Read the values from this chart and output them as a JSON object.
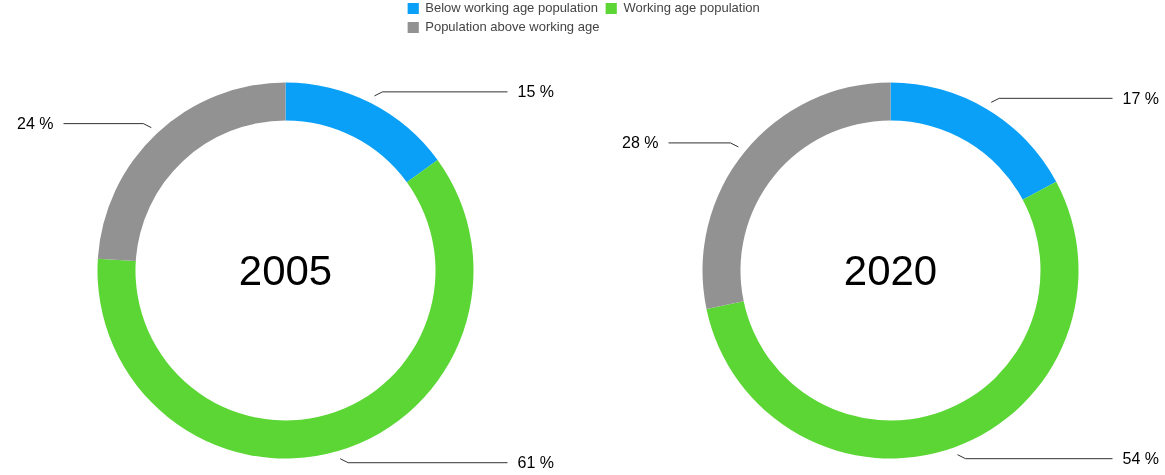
{
  "chart_data": [
    {
      "type": "donut",
      "title": "2005",
      "categories": [
        "Below working age population",
        "Working age population",
        "Population above working age"
      ],
      "values": [
        15,
        61,
        24
      ],
      "colors": [
        "#0aa0f7",
        "#5bd634",
        "#929292"
      ],
      "value_labels": [
        "15 %",
        "61 %",
        "24 %"
      ],
      "legend": "top"
    },
    {
      "type": "donut",
      "title": "2020",
      "categories": [
        null,
        null,
        null
      ],
      "values": [
        17,
        54,
        28
      ],
      "colors": [
        "#0aa0f7",
        "#5bd634",
        "#929292"
      ],
      "value_labels": [
        "17 %",
        "54 %",
        "28 %"
      ]
    }
  ]
}
